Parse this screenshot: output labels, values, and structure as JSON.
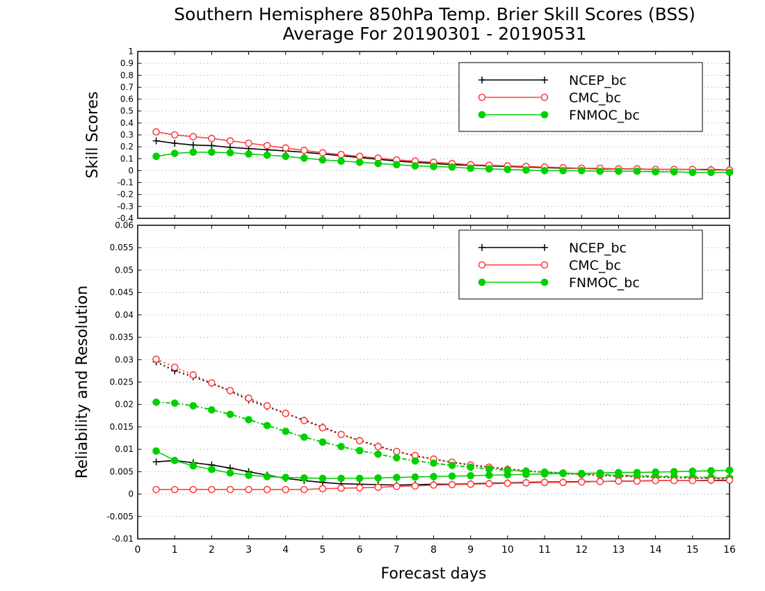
{
  "title": {
    "line1": "Southern Hemisphere 850hPa Temp. Brier Skill Scores (BSS)",
    "line2": "Average For 20190301 - 20190531"
  },
  "chart_data": [
    {
      "type": "line",
      "ylabel": "Skill Scores",
      "ylim": [
        -0.4,
        1
      ],
      "yticks": [
        "-0.4",
        "-0.3",
        "-0.2",
        "-0.1",
        "0",
        "0.1",
        "0.2",
        "0.3",
        "0.4",
        "0.5",
        "0.6",
        "0.7",
        "0.8",
        "0.9",
        "1"
      ],
      "xlim": [
        0,
        16
      ],
      "grid": true,
      "legend_position": "top-right",
      "x": [
        0.5,
        1,
        1.5,
        2,
        2.5,
        3,
        3.5,
        4,
        4.5,
        5,
        5.5,
        6,
        6.5,
        7,
        7.5,
        8,
        8.5,
        9,
        9.5,
        10,
        10.5,
        11,
        11.5,
        12,
        12.5,
        13,
        13.5,
        14,
        14.5,
        15,
        15.5,
        16
      ],
      "series": [
        {
          "name": "NCEP_bc",
          "color": "#000000",
          "marker": "plus",
          "linestyle": "solid",
          "values": [
            0.25,
            0.23,
            0.215,
            0.21,
            0.195,
            0.185,
            0.175,
            0.165,
            0.155,
            0.14,
            0.125,
            0.11,
            0.095,
            0.08,
            0.07,
            0.06,
            0.05,
            0.045,
            0.04,
            0.035,
            0.03,
            0.025,
            0.02,
            0.02,
            0.015,
            0.015,
            0.015,
            0.01,
            0.01,
            0.01,
            0.01,
            0.005
          ]
        },
        {
          "name": "CMC_bc",
          "color": "#ff4040",
          "marker": "open-circle",
          "linestyle": "solid",
          "values": [
            0.325,
            0.3,
            0.285,
            0.27,
            0.25,
            0.23,
            0.21,
            0.19,
            0.17,
            0.15,
            0.135,
            0.12,
            0.105,
            0.09,
            0.08,
            0.07,
            0.06,
            0.05,
            0.045,
            0.04,
            0.035,
            0.03,
            0.025,
            0.02,
            0.02,
            0.015,
            0.015,
            0.01,
            0.01,
            0.01,
            0.005,
            0.005
          ]
        },
        {
          "name": "FNMOC_bc",
          "color": "#00d000",
          "marker": "filled-circle",
          "linestyle": "solid",
          "values": [
            0.12,
            0.145,
            0.155,
            0.155,
            0.15,
            0.14,
            0.13,
            0.12,
            0.105,
            0.09,
            0.08,
            0.07,
            0.06,
            0.05,
            0.04,
            0.035,
            0.03,
            0.02,
            0.015,
            0.01,
            0.005,
            0.0,
            0.0,
            0.0,
            -0.005,
            -0.005,
            -0.005,
            -0.01,
            -0.01,
            -0.015,
            -0.015,
            -0.015
          ]
        }
      ]
    },
    {
      "type": "line",
      "xlabel": "Forecast days",
      "ylabel": "Reliability and Resolution",
      "ylim": [
        -0.01,
        0.06
      ],
      "yticks": [
        "-0.01",
        "-0.005",
        "0",
        "0.005",
        "0.01",
        "0.015",
        "0.02",
        "0.025",
        "0.03",
        "0.035",
        "0.04",
        "0.045",
        "0.05",
        "0.055",
        "0.06"
      ],
      "xlim": [
        0,
        16
      ],
      "xticks": [
        "0",
        "1",
        "2",
        "3",
        "4",
        "5",
        "6",
        "7",
        "8",
        "9",
        "10",
        "11",
        "12",
        "13",
        "14",
        "15",
        "16"
      ],
      "grid": true,
      "legend_position": "top-right",
      "x": [
        0.5,
        1,
        1.5,
        2,
        2.5,
        3,
        3.5,
        4,
        4.5,
        5,
        5.5,
        6,
        6.5,
        7,
        7.5,
        8,
        8.5,
        9,
        9.5,
        10,
        10.5,
        11,
        11.5,
        12,
        12.5,
        13,
        13.5,
        14,
        14.5,
        15,
        15.5,
        16
      ],
      "series": [
        {
          "name": "NCEP_bc",
          "color": "#000000",
          "marker": "plus",
          "linestyle": "solid",
          "metric": "reliability",
          "values": [
            0.0072,
            0.0075,
            0.007,
            0.0065,
            0.0058,
            0.005,
            0.0042,
            0.0035,
            0.003,
            0.0026,
            0.0023,
            0.0022,
            0.0021,
            0.002,
            0.0021,
            0.0022,
            0.0022,
            0.0023,
            0.0024,
            0.0025,
            0.0026,
            0.0027,
            0.0027,
            0.0028,
            0.0028,
            0.0029,
            0.0029,
            0.003,
            0.003,
            0.003,
            0.003,
            0.003
          ]
        },
        {
          "name": "NCEP_bc",
          "color": "#000000",
          "marker": "plus",
          "linestyle": "dotted",
          "metric": "resolution",
          "values": [
            0.0295,
            0.0275,
            0.0262,
            0.0247,
            0.023,
            0.021,
            0.0195,
            0.018,
            0.0165,
            0.015,
            0.0133,
            0.012,
            0.0107,
            0.0095,
            0.0085,
            0.0078,
            0.0071,
            0.0065,
            0.006,
            0.0056,
            0.0052,
            0.0049,
            0.0046,
            0.0044,
            0.0042,
            0.004,
            0.0039,
            0.0038,
            0.0037,
            0.0036,
            0.0035,
            0.0034
          ]
        },
        {
          "name": "CMC_bc",
          "color": "#ff4040",
          "marker": "open-circle",
          "linestyle": "solid",
          "metric": "reliability",
          "values": [
            0.001,
            0.001,
            0.001,
            0.001,
            0.001,
            0.001,
            0.001,
            0.001,
            0.001,
            0.0012,
            0.0013,
            0.0014,
            0.0015,
            0.0017,
            0.0018,
            0.002,
            0.0021,
            0.0022,
            0.0023,
            0.0024,
            0.0025,
            0.0026,
            0.0026,
            0.0027,
            0.0028,
            0.0029,
            0.0029,
            0.003,
            0.003,
            0.003,
            0.0031,
            0.0031
          ]
        },
        {
          "name": "CMC_bc",
          "color": "#ff4040",
          "marker": "open-circle",
          "linestyle": "dotted",
          "metric": "resolution",
          "values": [
            0.0301,
            0.0283,
            0.0266,
            0.0248,
            0.0231,
            0.0214,
            0.0197,
            0.018,
            0.0164,
            0.0148,
            0.0133,
            0.0119,
            0.0106,
            0.0095,
            0.0086,
            0.0078,
            0.0071,
            0.0065,
            0.006,
            0.0055,
            0.0051,
            0.0048,
            0.0046,
            0.0044,
            0.0042,
            0.004,
            0.0039,
            0.0038,
            0.0037,
            0.0036,
            0.0036,
            0.0035
          ]
        },
        {
          "name": "FNMOC_bc",
          "color": "#00d000",
          "marker": "filled-circle",
          "linestyle": "solid",
          "metric": "reliability",
          "values": [
            0.0096,
            0.0075,
            0.0063,
            0.0055,
            0.0047,
            0.0042,
            0.0039,
            0.0037,
            0.0036,
            0.0035,
            0.0035,
            0.0035,
            0.0036,
            0.0037,
            0.0038,
            0.0039,
            0.004,
            0.0041,
            0.0042,
            0.0043,
            0.0044,
            0.0045,
            0.0046,
            0.0046,
            0.0047,
            0.0048,
            0.0048,
            0.0049,
            0.005,
            0.0051,
            0.0052,
            0.0053
          ]
        },
        {
          "name": "FNMOC_bc",
          "color": "#00d000",
          "marker": "filled-circle",
          "linestyle": "dotted",
          "metric": "resolution",
          "values": [
            0.0205,
            0.0203,
            0.0197,
            0.0188,
            0.0178,
            0.0166,
            0.0153,
            0.014,
            0.0127,
            0.0116,
            0.0106,
            0.0097,
            0.0089,
            0.0081,
            0.0074,
            0.0069,
            0.0064,
            0.006,
            0.0056,
            0.0053,
            0.0051,
            0.0049,
            0.0047,
            0.0045,
            0.0044,
            0.0042,
            0.0041,
            0.004,
            0.0039,
            0.0038,
            0.0037,
            0.0036
          ]
        }
      ]
    }
  ]
}
